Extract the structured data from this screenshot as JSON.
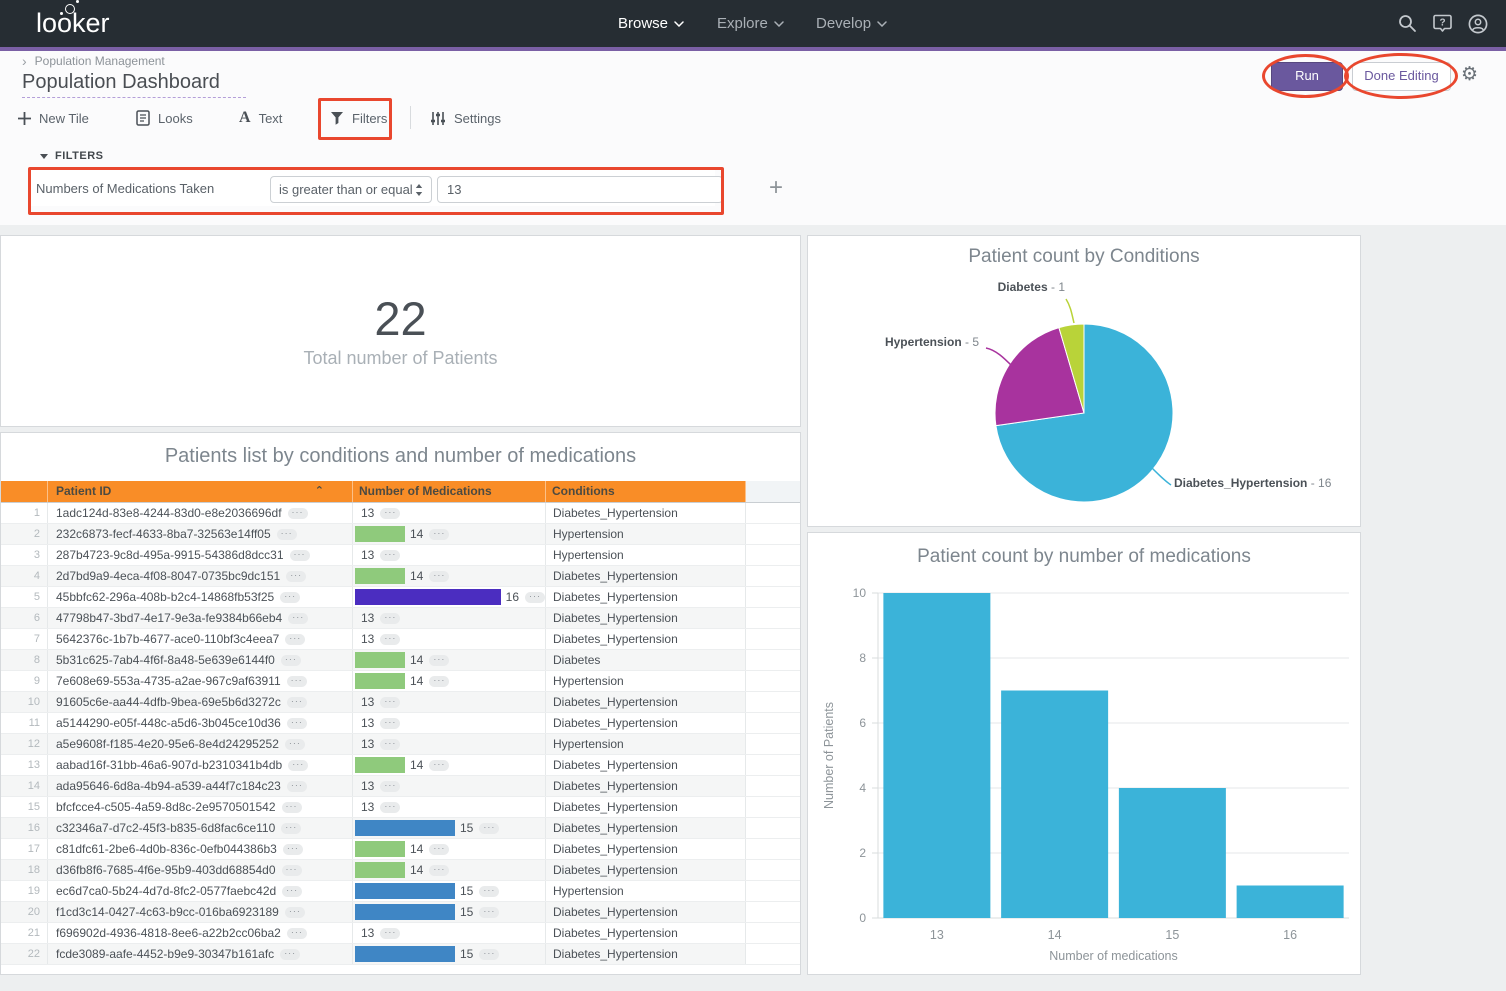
{
  "colors": {
    "navbar_bg": "#262d33",
    "accent_purple": "#7a5fa5",
    "run_button_bg": "#6a589e",
    "annotation_red": "#e9472e",
    "table_header_bg": "#f98d27",
    "chart_blue": "#3bb3d9",
    "meds_bar": {
      "14": "#8fca7c",
      "15": "#3f86c5",
      "16": "#4b2dc0"
    }
  },
  "nav": {
    "logo": "looker",
    "menus": [
      {
        "label": "Browse"
      },
      {
        "label": "Explore"
      },
      {
        "label": "Develop"
      }
    ]
  },
  "header": {
    "breadcrumb": "Population Management",
    "title": "Population Dashboard",
    "run_button": "Run",
    "done_editing_button": "Done Editing"
  },
  "toolbar": {
    "new_tile": "New Tile",
    "looks": "Looks",
    "text": "Text",
    "filters": "Filters",
    "settings": "Settings"
  },
  "filters_section": {
    "label": "FILTERS",
    "filter": {
      "field": "Numbers of Medications Taken",
      "operator": "is greater than or equal",
      "value": "13"
    }
  },
  "single_value_tile": {
    "value": "22",
    "label": "Total number of Patients"
  },
  "table_tile": {
    "title": "Patients list by conditions and number of medications",
    "columns": [
      "Patient ID",
      "Number of Medications",
      "Conditions"
    ],
    "rows": [
      {
        "n": 1,
        "id": "1adc124d-83e8-4244-83d0-e8e2036696df",
        "meds": 13,
        "conditions": "Diabetes_Hypertension"
      },
      {
        "n": 2,
        "id": "232c6873-fecf-4633-8ba7-32563e14ff05",
        "meds": 14,
        "conditions": "Hypertension"
      },
      {
        "n": 3,
        "id": "287b4723-9c8d-495a-9915-54386d8dcc31",
        "meds": 13,
        "conditions": "Hypertension"
      },
      {
        "n": 4,
        "id": "2d7bd9a9-4eca-4f08-8047-0735bc9dc151",
        "meds": 14,
        "conditions": "Diabetes_Hypertension"
      },
      {
        "n": 5,
        "id": "45bbfc62-296a-408b-b2c4-14868fb53f25",
        "meds": 16,
        "conditions": "Diabetes_Hypertension"
      },
      {
        "n": 6,
        "id": "47798b47-3bd7-4e17-9e3a-fe9384b66eb4",
        "meds": 13,
        "conditions": "Diabetes_Hypertension"
      },
      {
        "n": 7,
        "id": "5642376c-1b7b-4677-ace0-110bf3c4eea7",
        "meds": 13,
        "conditions": "Diabetes_Hypertension"
      },
      {
        "n": 8,
        "id": "5b31c625-7ab4-4f6f-8a48-5e639e6144f0",
        "meds": 14,
        "conditions": "Diabetes"
      },
      {
        "n": 9,
        "id": "7e608e69-553a-4735-a2ae-967c9af63911",
        "meds": 14,
        "conditions": "Hypertension"
      },
      {
        "n": 10,
        "id": "91605c6e-aa44-4dfb-9bea-69e5b6d3272c",
        "meds": 13,
        "conditions": "Diabetes_Hypertension"
      },
      {
        "n": 11,
        "id": "a5144290-e05f-448c-a5d6-3b045ce10d36",
        "meds": 13,
        "conditions": "Diabetes_Hypertension"
      },
      {
        "n": 12,
        "id": "a5e9608f-f185-4e20-95e6-8e4d24295252",
        "meds": 13,
        "conditions": "Hypertension"
      },
      {
        "n": 13,
        "id": "aabad16f-31bb-46a6-907d-b2310341b4db",
        "meds": 14,
        "conditions": "Diabetes_Hypertension"
      },
      {
        "n": 14,
        "id": "ada95646-6d8a-4b94-a539-a44f7c184c23",
        "meds": 13,
        "conditions": "Diabetes_Hypertension"
      },
      {
        "n": 15,
        "id": "bfcfcce4-c505-4a59-8d8c-2e9570501542",
        "meds": 13,
        "conditions": "Diabetes_Hypertension"
      },
      {
        "n": 16,
        "id": "c32346a7-d7c2-45f3-b835-6d8fac6ce110",
        "meds": 15,
        "conditions": "Diabetes_Hypertension"
      },
      {
        "n": 17,
        "id": "c81dfc61-2be6-4d0b-836c-0efb044386b3",
        "meds": 14,
        "conditions": "Diabetes_Hypertension"
      },
      {
        "n": 18,
        "id": "d36fb8f6-7685-4f6e-95b9-403dd68854d0",
        "meds": 14,
        "conditions": "Diabetes_Hypertension"
      },
      {
        "n": 19,
        "id": "ec6d7ca0-5b24-4d7d-8fc2-0577faebc42d",
        "meds": 15,
        "conditions": "Hypertension"
      },
      {
        "n": 20,
        "id": "f1cd3c14-0427-4c63-b9cc-016ba6923189",
        "meds": 15,
        "conditions": "Diabetes_Hypertension"
      },
      {
        "n": 21,
        "id": "f696902d-4936-4818-8ee6-a22b2cc06ba2",
        "meds": 13,
        "conditions": "Diabetes_Hypertension"
      },
      {
        "n": 22,
        "id": "fcde3089-aafe-4452-b9e9-30347b161afc",
        "meds": 15,
        "conditions": "Diabetes_Hypertension"
      }
    ]
  },
  "chart_data": [
    {
      "type": "pie",
      "title": "Patient count by Conditions",
      "slices": [
        {
          "label": "Diabetes_Hypertension",
          "value": 16,
          "color": "#3bb3d9"
        },
        {
          "label": "Hypertension",
          "value": 5,
          "color": "#a8339e"
        },
        {
          "label": "Diabetes",
          "value": 1,
          "color": "#b9d339"
        }
      ],
      "total": 22,
      "legend_position": "callout-labels"
    },
    {
      "type": "bar",
      "title": "Patient count by number of medications",
      "categories": [
        "13",
        "14",
        "15",
        "16"
      ],
      "values": [
        10,
        7,
        4,
        1
      ],
      "xlabel": "Number of medications",
      "ylabel": "Number of Patients",
      "ylim": [
        0,
        10
      ],
      "yticks": [
        0,
        2,
        4,
        6,
        8,
        10
      ],
      "grid": "horizontal",
      "bar_color": "#3bb3d9"
    }
  ]
}
